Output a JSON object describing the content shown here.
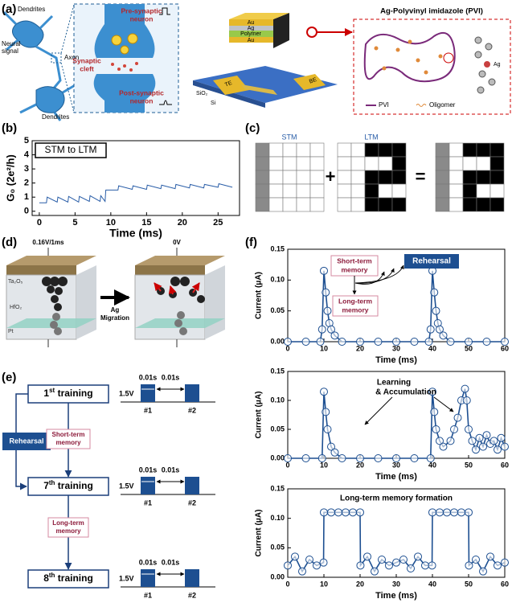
{
  "panel_labels": [
    "(a)",
    "(b)",
    "(c)",
    "(d)",
    "(e)",
    "(f)"
  ],
  "panel_a": {
    "neuron": {
      "dendrites_top": "Dendrites",
      "neural_signal": [
        "Neural",
        "signal"
      ],
      "axon": "Axon",
      "dendrites_bottom": "Dendrites"
    },
    "synapse": {
      "pre": [
        "Pre-synaptic",
        "neuron"
      ],
      "cleft": [
        "Synaptic",
        "cleft"
      ],
      "post": [
        "Post-synaptic",
        "neuron"
      ]
    },
    "device": {
      "layers": [
        "Au",
        "Ag",
        "Polymer",
        "Au"
      ],
      "te": "TE",
      "be": "BE",
      "sio2": "SiO₂",
      "si": "Si"
    },
    "pvi": {
      "title": "Ag-Polyvinyl imidazole (PVI)",
      "legend": [
        "PVI",
        "Oligomer"
      ],
      "ag": "Ag"
    }
  },
  "panel_c": {
    "stm": "STM",
    "ltm": "LTM",
    "plus": "+",
    "equals": "="
  },
  "panel_d": {
    "voltage_left": "0.16V/1ms",
    "voltage_right": "0V",
    "layers": [
      "Ta₂O₅",
      "HfO₂",
      "Pt"
    ],
    "migration": [
      "Ag",
      "Migration"
    ]
  },
  "panel_e": {
    "trainings": [
      {
        "number": "1",
        "suffix": "st",
        "label": " training"
      },
      {
        "number": "7",
        "suffix": "th",
        "label": " training"
      },
      {
        "number": "8",
        "suffix": "th",
        "label": " training"
      }
    ],
    "pulse": {
      "width": "0.01s",
      "gap": "0.01s",
      "amplitude": "1.5V",
      "pulses": [
        "#1",
        "#2"
      ]
    },
    "rehearsal": "Rehearsal",
    "short_term": [
      "Short-term",
      "memory"
    ],
    "long_term": [
      "Long-term",
      "memory"
    ]
  },
  "chart_data": [
    {
      "type": "line",
      "x_label": "Time (ms)",
      "y_label": "G₀ (2e²/h)",
      "color": "#2a5ea8",
      "markers": false,
      "annotations": [
        [
          "STM to LTM"
        ]
      ],
      "xlim": [
        -1,
        28
      ],
      "ylim": [
        -0.3,
        5
      ],
      "xticks": [
        0,
        5,
        10,
        15,
        20,
        25
      ],
      "yticks": [
        0,
        1,
        2,
        3,
        4,
        5
      ],
      "x": [
        0,
        1,
        1.1,
        2.5,
        2.6,
        4,
        4.1,
        5.5,
        5.6,
        7,
        7.1,
        8.5,
        8.6,
        9.2,
        9.3,
        11,
        11.1,
        13,
        13.1,
        15,
        15.1,
        17,
        17.1,
        19,
        19.1,
        21,
        21.1,
        23,
        23.1,
        25,
        25.1,
        27
      ],
      "values": [
        0.6,
        0.6,
        1.0,
        0.65,
        1.0,
        0.65,
        1.05,
        0.65,
        1.05,
        0.7,
        1.1,
        0.7,
        1.1,
        0.7,
        1.5,
        1.5,
        1.8,
        1.55,
        1.8,
        1.55,
        1.85,
        1.6,
        1.85,
        1.6,
        1.9,
        1.65,
        1.9,
        1.65,
        1.9,
        1.7,
        1.95,
        1.7
      ]
    },
    {
      "type": "line",
      "x_label": "Time (ms)",
      "y_label": "Current (μA)",
      "color": "#1d4f91",
      "markers": true,
      "annotations": [
        [
          "Short-term",
          "memory"
        ],
        [
          "Long-term",
          "memory"
        ],
        [
          "Rehearsal"
        ]
      ],
      "xlim": [
        0,
        60
      ],
      "ylim": [
        0,
        0.15
      ],
      "xticks": [
        0,
        10,
        20,
        30,
        40,
        50,
        60
      ],
      "yticks": [
        {
          "value": 0,
          "label": "0.00"
        },
        {
          "value": 0.05,
          "label": "0.05"
        },
        {
          "value": 0.1,
          "label": "0.10"
        },
        {
          "value": 0.15,
          "label": "0.15"
        }
      ],
      "x": [
        0,
        5,
        9,
        9.5,
        10,
        10.5,
        11,
        11.5,
        12,
        13,
        15,
        20,
        25,
        30,
        35,
        39,
        39.5,
        40,
        40.5,
        41,
        41.5,
        42,
        43,
        45,
        50,
        55,
        60
      ],
      "values": [
        0,
        0,
        0,
        0.02,
        0.115,
        0.08,
        0.05,
        0.03,
        0.02,
        0.01,
        0,
        0,
        0,
        0,
        0,
        0,
        0.02,
        0.115,
        0.08,
        0.05,
        0.03,
        0.02,
        0.01,
        0,
        0,
        0,
        0
      ]
    },
    {
      "type": "line",
      "x_label": "Time (ms)",
      "y_label": "Current (μA)",
      "color": "#1d4f91",
      "markers": true,
      "annotations": [
        [
          "Learning",
          "& Accumulation"
        ]
      ],
      "xlim": [
        0,
        60
      ],
      "ylim": [
        0,
        0.15
      ],
      "xticks": [
        0,
        10,
        20,
        30,
        40,
        50,
        60
      ],
      "yticks": [
        {
          "value": 0,
          "label": "0.00"
        },
        {
          "value": 0.05,
          "label": "0.05"
        },
        {
          "value": 0.1,
          "label": "0.10"
        },
        {
          "value": 0.15,
          "label": "0.15"
        }
      ],
      "x": [
        0,
        5,
        9.5,
        10,
        10.5,
        11,
        12,
        13,
        15,
        20,
        25,
        30,
        35,
        39.5,
        40,
        40.5,
        41,
        42,
        43,
        45,
        46,
        47,
        48,
        49,
        49.5,
        50,
        51,
        52,
        53,
        54,
        55,
        56,
        57,
        58,
        59,
        60
      ],
      "values": [
        0,
        0,
        0,
        0.115,
        0.08,
        0.05,
        0.02,
        0.01,
        0,
        0,
        0,
        0,
        0,
        0,
        0.115,
        0.08,
        0.05,
        0.03,
        0.02,
        0.03,
        0.05,
        0.07,
        0.1,
        0.12,
        0.1,
        0.05,
        0.03,
        0.015,
        0.035,
        0.02,
        0.04,
        0.025,
        0.03,
        0.015,
        0.035,
        0.02
      ]
    },
    {
      "type": "line",
      "x_label": "Time (ms)",
      "y_label": "Current (μA)",
      "color": "#1d4f91",
      "markers": true,
      "annotations": [
        [
          "Long-term memory formation"
        ]
      ],
      "xlim": [
        0,
        60
      ],
      "ylim": [
        0,
        0.15
      ],
      "xticks": [
        0,
        10,
        20,
        30,
        40,
        50,
        60
      ],
      "yticks": [
        {
          "value": 0,
          "label": "0.00"
        },
        {
          "value": 0.05,
          "label": "0.05"
        },
        {
          "value": 0.1,
          "label": "0.10"
        },
        {
          "value": 0.15,
          "label": "0.15"
        }
      ],
      "x": [
        0,
        2,
        4,
        6,
        8,
        9.9,
        10,
        12,
        14,
        16,
        18,
        20,
        20.1,
        22,
        24,
        26,
        28,
        30,
        32,
        34,
        36,
        38,
        39.9,
        40,
        42,
        44,
        46,
        48,
        50,
        50.1,
        52,
        54,
        56,
        58,
        60
      ],
      "values": [
        0.02,
        0.035,
        0.01,
        0.03,
        0.02,
        0.025,
        0.11,
        0.11,
        0.11,
        0.11,
        0.11,
        0.11,
        0.02,
        0.035,
        0.01,
        0.03,
        0.02,
        0.025,
        0.03,
        0.015,
        0.035,
        0.02,
        0.02,
        0.11,
        0.11,
        0.11,
        0.11,
        0.11,
        0.11,
        0.02,
        0.03,
        0.01,
        0.035,
        0.02,
        0.025
      ]
    }
  ]
}
